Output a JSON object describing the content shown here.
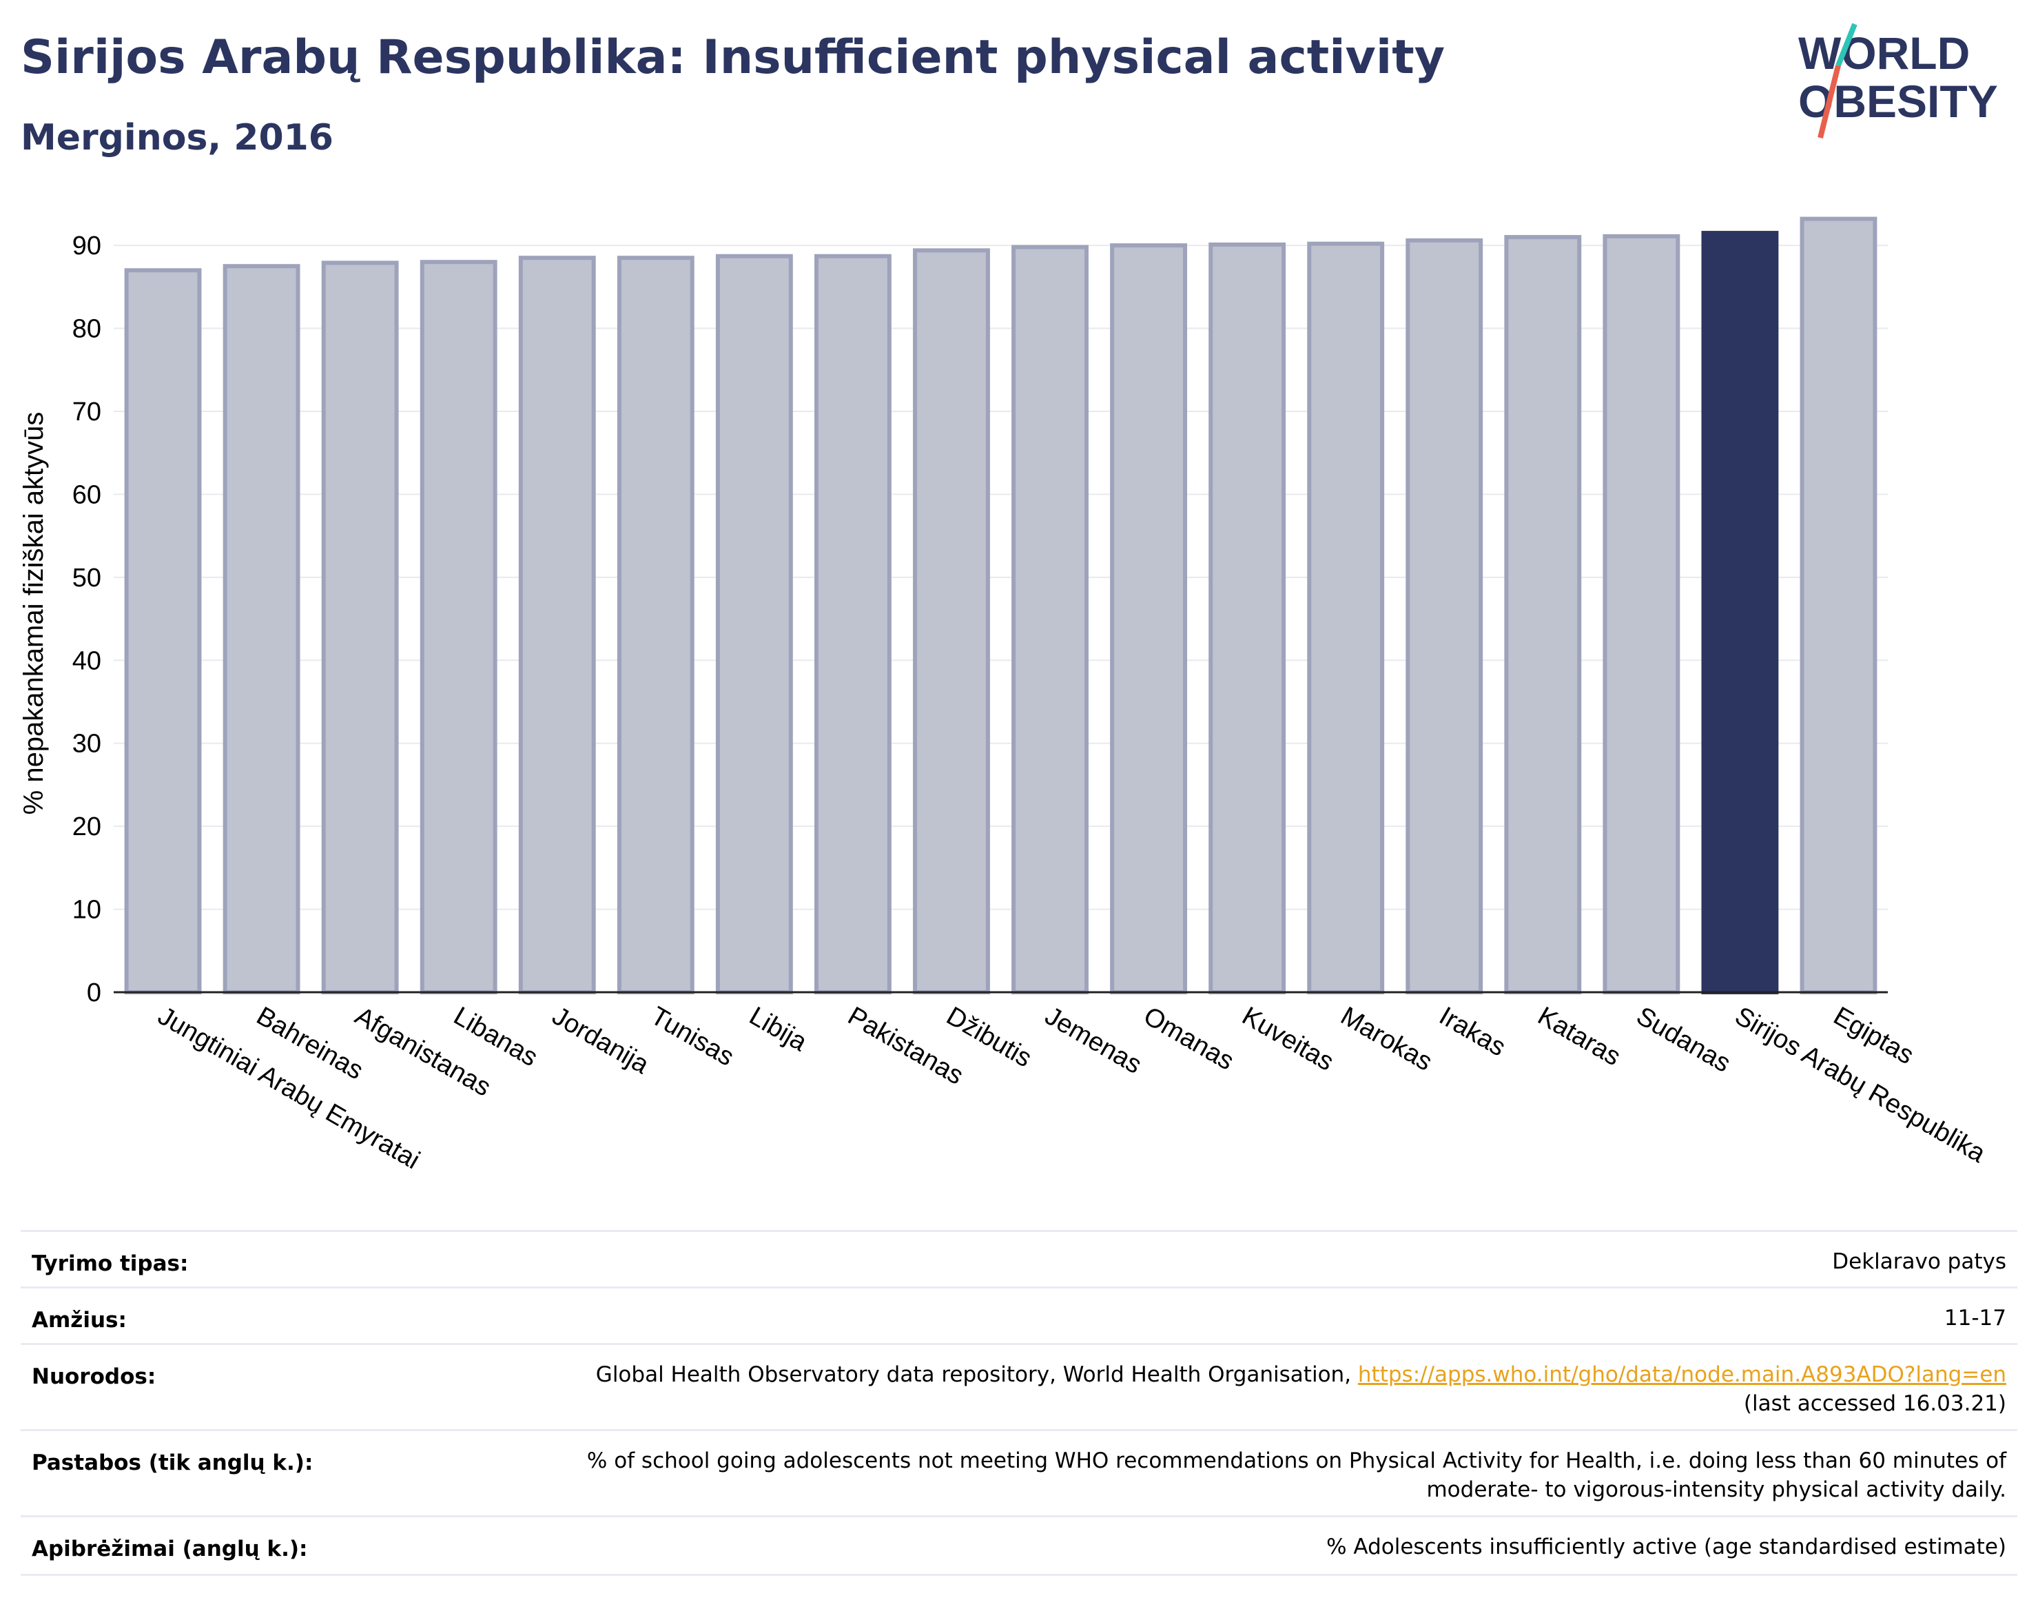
{
  "header": {
    "title": "Sirijos Arabų Respublika: Insufficient physical activity",
    "subtitle": "Merginos, 2016"
  },
  "logo": {
    "line1": "WORLD",
    "line2": "OBESITY"
  },
  "colors": {
    "navy": "#2b3560",
    "bar_fill": "#bfc2cf",
    "bar_stroke": "#9ea3bb",
    "accent_teal": "#2ec4b6",
    "accent_red": "#e8604c",
    "link": "#e8a21c"
  },
  "chart_data": {
    "type": "bar",
    "ylabel": "% nepakankamai fiziškai aktyvūs",
    "ylim": [
      0,
      93
    ],
    "yticks": [
      0,
      10,
      20,
      30,
      40,
      50,
      60,
      70,
      80,
      90
    ],
    "grid": true,
    "highlight": "Sirijos Arabų Respublika",
    "categories": [
      "Jungtiniai Arabų Emyratai",
      "Bahreinas",
      "Afganistanas",
      "Libanas",
      "Jordanija",
      "Tunisas",
      "Libija",
      "Pakistanas",
      "Džibutis",
      "Jemenas",
      "Omanas",
      "Kuveitas",
      "Marokas",
      "Irakas",
      "Kataras",
      "Sudanas",
      "Sirijos Arabų Respublika",
      "Egiptas"
    ],
    "values": [
      87.0,
      87.5,
      87.9,
      88.0,
      88.5,
      88.5,
      88.7,
      88.7,
      89.4,
      89.8,
      90.0,
      90.1,
      90.2,
      90.6,
      91.0,
      91.1,
      91.5,
      93.2
    ]
  },
  "meta": {
    "rows": [
      {
        "label": "Tyrimo tipas:",
        "value": "Deklaravo patys"
      },
      {
        "label": "Amžius:",
        "value": "11-17"
      },
      {
        "label": "Nuorodos:",
        "value": "Global Health Observatory data repository, World Health Organisation, ",
        "link": "https://apps.who.int/gho/data/node.main.A893ADO?lang=en",
        "value2": "(last accessed 16.03.21)"
      },
      {
        "label": "Pastabos (tik anglų k.):",
        "value": "% of school going adolescents not meeting WHO recommendations on Physical Activity for Health, i.e. doing less than 60 minutes of",
        "value2": "moderate- to vigorous-intensity physical activity daily."
      },
      {
        "label": "Apibrėžimai (anglų k.):",
        "value": "% Adolescents insufficiently active (age standardised estimate)"
      }
    ]
  }
}
